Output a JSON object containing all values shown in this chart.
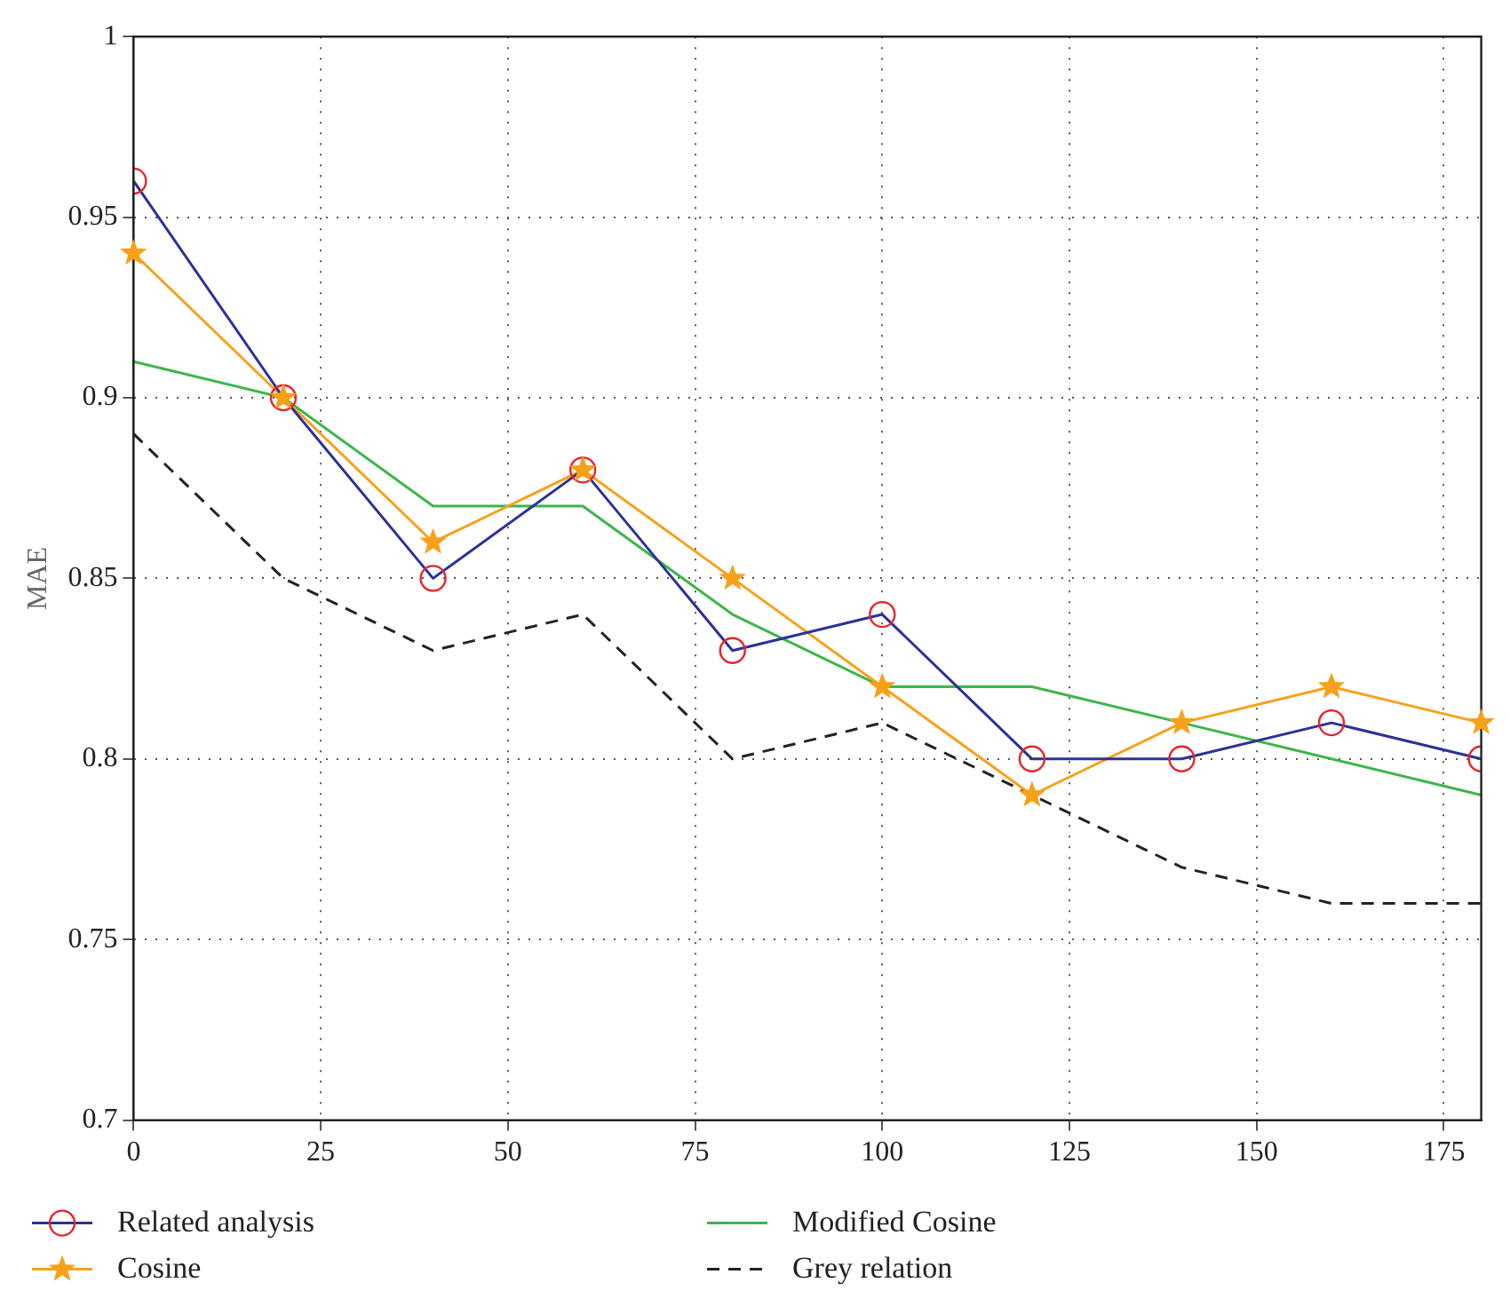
{
  "chart_data": {
    "type": "line",
    "ylabel": "MAE",
    "x": [
      0,
      20,
      40,
      60,
      80,
      100,
      120,
      140,
      160,
      180
    ],
    "series": [
      {
        "name": "Related analysis",
        "color": "#2b3196",
        "marker": "circle",
        "line_style": "solid",
        "values": [
          0.96,
          0.9,
          0.85,
          0.88,
          0.83,
          0.84,
          0.8,
          0.8,
          0.81,
          0.8
        ]
      },
      {
        "name": "Cosine",
        "color": "#f7a11a",
        "marker": "star",
        "line_style": "solid",
        "values": [
          0.94,
          0.9,
          0.86,
          0.88,
          0.85,
          0.82,
          0.79,
          0.81,
          0.82,
          0.81
        ]
      },
      {
        "name": "Modified Cosine",
        "color": "#3cb64a",
        "marker": "none",
        "line_style": "solid",
        "values": [
          0.91,
          0.9,
          0.87,
          0.87,
          0.84,
          0.82,
          0.82,
          0.81,
          0.8,
          0.79
        ]
      },
      {
        "name": "Grey relation",
        "color": "#222222",
        "marker": "none",
        "line_style": "dashed",
        "values": [
          0.89,
          0.85,
          0.83,
          0.84,
          0.8,
          0.81,
          0.79,
          0.77,
          0.76,
          0.76
        ]
      }
    ],
    "xlim": [
      0,
      180
    ],
    "xticks": [
      0,
      25,
      50,
      75,
      100,
      125,
      150,
      175
    ],
    "ylim": [
      0.7,
      1
    ],
    "yticks": [
      0.7,
      0.75,
      0.8,
      0.85,
      0.9,
      0.95,
      1
    ],
    "grid": true,
    "legend": "bottom"
  }
}
